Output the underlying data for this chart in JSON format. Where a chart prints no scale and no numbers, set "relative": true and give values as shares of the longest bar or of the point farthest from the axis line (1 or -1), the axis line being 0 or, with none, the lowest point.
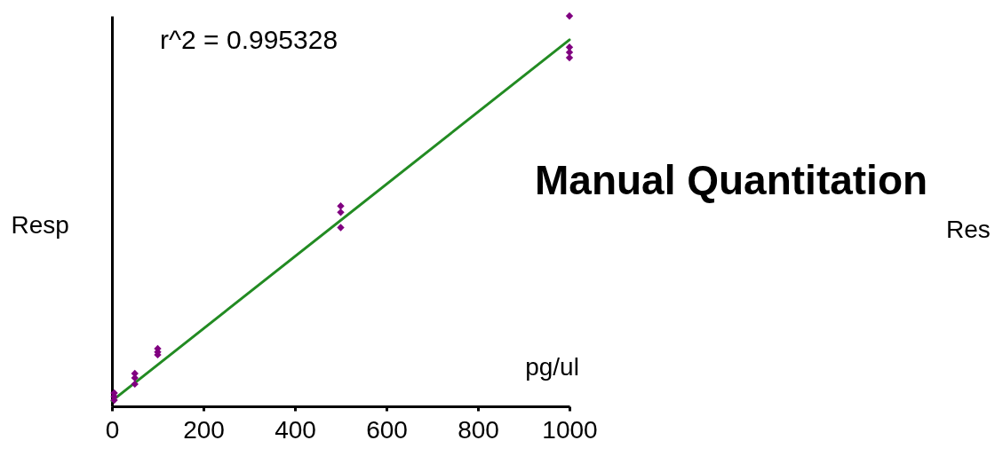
{
  "chart_data": {
    "type": "scatter",
    "xlabel": "pg/ul",
    "ylabel": "Resp",
    "relative": true,
    "xlim": [
      0,
      1000
    ],
    "xticks": [
      0,
      200,
      400,
      600,
      800,
      1000
    ],
    "grid": false,
    "annotations": [
      "r^2 = 0.995328",
      "Manual Quantitation",
      "Res"
    ],
    "series": [
      {
        "marker": "diamond",
        "color": "#800080",
        "x": [
          5,
          5,
          5,
          50,
          50,
          50,
          100,
          100,
          100,
          500,
          500,
          500,
          1000,
          1000,
          1000,
          1000
        ],
        "values": [
          0.034,
          0.025,
          0.016,
          0.084,
          0.073,
          0.057,
          0.148,
          0.139,
          0.132,
          0.513,
          0.497,
          0.458,
          1,
          0.92,
          0.907,
          0.893
        ]
      },
      {
        "type": "line",
        "color": "#228b22",
        "x": [
          0,
          1000
        ],
        "values": [
          0.014,
          0.939
        ]
      }
    ]
  }
}
